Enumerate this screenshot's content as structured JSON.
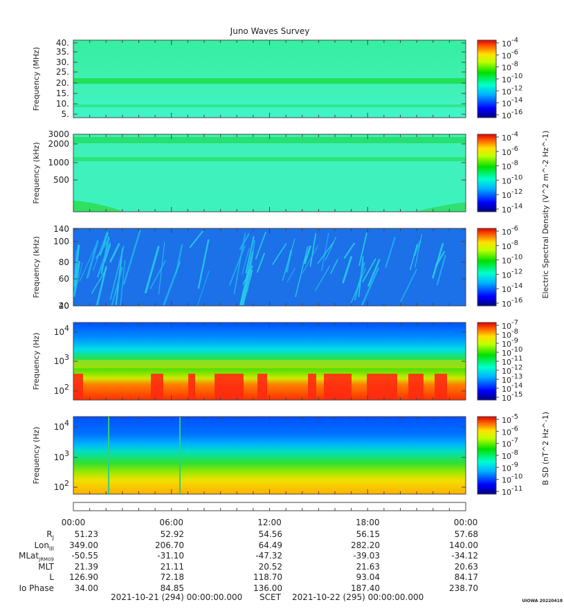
{
  "chart_data": {
    "title": "Juno Waves Survey",
    "type": "heatmap",
    "panels": [
      {
        "id": "p1",
        "ylabel": "Frequency (MHz)",
        "yticks": [
          "40.",
          "35.",
          "30.",
          "25.",
          "20.",
          "15.",
          "10.",
          "5."
        ],
        "cbar_ticks": [
          "10^-4",
          "10^-6",
          "10^-8",
          "10^-10",
          "10^-12",
          "10^-14",
          "10^-16"
        ]
      },
      {
        "id": "p2",
        "ylabel": "Frequency (kHz)",
        "yticks": [
          "3000",
          "2000",
          "1000",
          "500"
        ],
        "cbar_ticks": [
          "10^-4",
          "10^-6",
          "10^-8",
          "10^-10",
          "10^-12",
          "10^-14"
        ],
        "cbar_label": "Electric Spectral Density (V^2 m^-2 Hz^-1)"
      },
      {
        "id": "p3",
        "ylabel": "Frequency (kHz)",
        "yticks": [
          "140",
          "100",
          "80",
          "60",
          "40",
          "20"
        ],
        "cbar_ticks": [
          "10^-6",
          "10^-8",
          "10^-10",
          "10^-12",
          "10^-14",
          "10^-16"
        ]
      },
      {
        "id": "p4",
        "ylabel": "Frequency (Hz)",
        "yticks": [
          "10^4",
          "10^3",
          "10^2"
        ],
        "cbar_ticks": [
          "10^-7",
          "10^-8",
          "10^-9",
          "10^-10",
          "10^-11",
          "10^-12",
          "10^-13",
          "10^-14",
          "10^-15"
        ]
      },
      {
        "id": "p5",
        "ylabel": "Frequency (Hz)",
        "yticks": [
          "10^4",
          "10^3",
          "10^2"
        ],
        "cbar_ticks": [
          "10^-5",
          "10^-6",
          "10^-7",
          "10^-8",
          "10^-9",
          "10^-10",
          "10^-11"
        ],
        "cbar_label": "B SD (nT^2 Hz^-1)"
      }
    ],
    "x_tick_labels": [
      "00:00",
      "06:00",
      "12:00",
      "18:00",
      "00:00"
    ],
    "ephemeris": [
      {
        "label": "R_J",
        "values": [
          "51.23",
          "52.92",
          "54.56",
          "56.15",
          "57.68"
        ]
      },
      {
        "label": "Lon_III",
        "values": [
          "349.00",
          "206.70",
          "64.49",
          "282.20",
          "140.00"
        ]
      },
      {
        "label": "MLat_JRM09",
        "values": [
          "-50.55",
          "-31.10",
          "-47.32",
          "-39.03",
          "-34.12"
        ]
      },
      {
        "label": "MLT",
        "values": [
          "21.39",
          "21.11",
          "20.52",
          "21.63",
          "20.63"
        ]
      },
      {
        "label": "L",
        "values": [
          "126.90",
          "72.18",
          "118.70",
          "93.04",
          "84.17"
        ]
      },
      {
        "label": "Io Phase",
        "values": [
          "34.00",
          "84.85",
          "136.00",
          "187.40",
          "238.70"
        ]
      }
    ]
  },
  "footer": {
    "start": "2021-10-21 (294) 00:00:00.000",
    "scet": "SCET",
    "end": "2021-10-22 (295) 00:00:00.000"
  },
  "credit": "UIOWA 20220418"
}
